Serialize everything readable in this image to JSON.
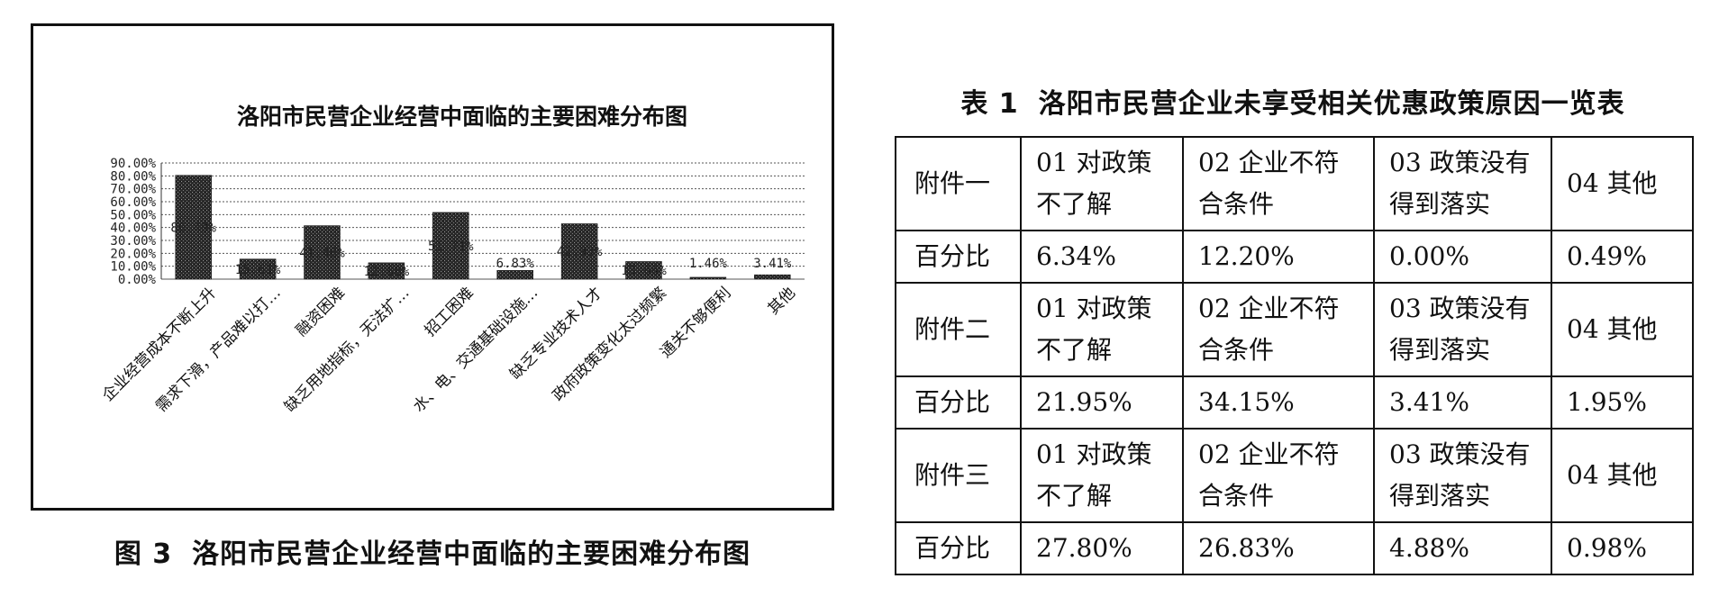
{
  "figure": {
    "number": "图 3",
    "caption": "洛阳市民营企业经营中面临的主要困难分布图"
  },
  "chart_data": {
    "type": "bar",
    "title": "洛阳市民营企业经营中面临的主要困难分布图",
    "categories": [
      "企业经营成本不断上升",
      "需求下滑，产品难以打…",
      "融资困难",
      "缺乏用地指标，无法扩…",
      "招工困难",
      "水、电、交通基础设施…",
      "缺乏专业技术人才",
      "政府政策变化太过频繁",
      "通关不够便利",
      "其他"
    ],
    "values": [
      80.49,
      15.61,
      41.46,
      12.68,
      51.71,
      6.83,
      42.93,
      13.66,
      1.46,
      3.41
    ],
    "data_labels": [
      "80.49%",
      "15.61%",
      "41.46%",
      "12.68%",
      "51.71%",
      "6.83%",
      "42.93%",
      "13.66%",
      "1.46%",
      "3.41%"
    ],
    "y_ticks": [
      "0.00%",
      "10.00%",
      "20.00%",
      "30.00%",
      "40.00%",
      "50.00%",
      "60.00%",
      "70.00%",
      "80.00%",
      "90.00%"
    ],
    "ylim": [
      0,
      90
    ],
    "grid": true,
    "xlabel": "",
    "ylabel": ""
  },
  "table": {
    "number": "表 1",
    "caption": "洛阳市民营企业未享受相关优惠政策原因一览表",
    "rows": [
      {
        "label": "附件一",
        "cells": [
          "01 对政策不了解",
          "02 企业不符合条件",
          "03 政策没有得到落实",
          "04 其他"
        ]
      },
      {
        "label": "百分比",
        "cells": [
          "6.34%",
          "12.20%",
          "0.00%",
          "0.49%"
        ]
      },
      {
        "label": "附件二",
        "cells": [
          "01 对政策不了解",
          "02 企业不符合条件",
          "03 政策没有得到落实",
          "04 其他"
        ]
      },
      {
        "label": "百分比",
        "cells": [
          "21.95%",
          "34.15%",
          "3.41%",
          "1.95%"
        ]
      },
      {
        "label": "附件三",
        "cells": [
          "01 对政策不了解",
          "02 企业不符合条件",
          "03 政策没有得到落实",
          "04 其他"
        ]
      },
      {
        "label": "百分比",
        "cells": [
          "27.80%",
          "26.83%",
          "4.88%",
          "0.98%"
        ]
      }
    ]
  }
}
